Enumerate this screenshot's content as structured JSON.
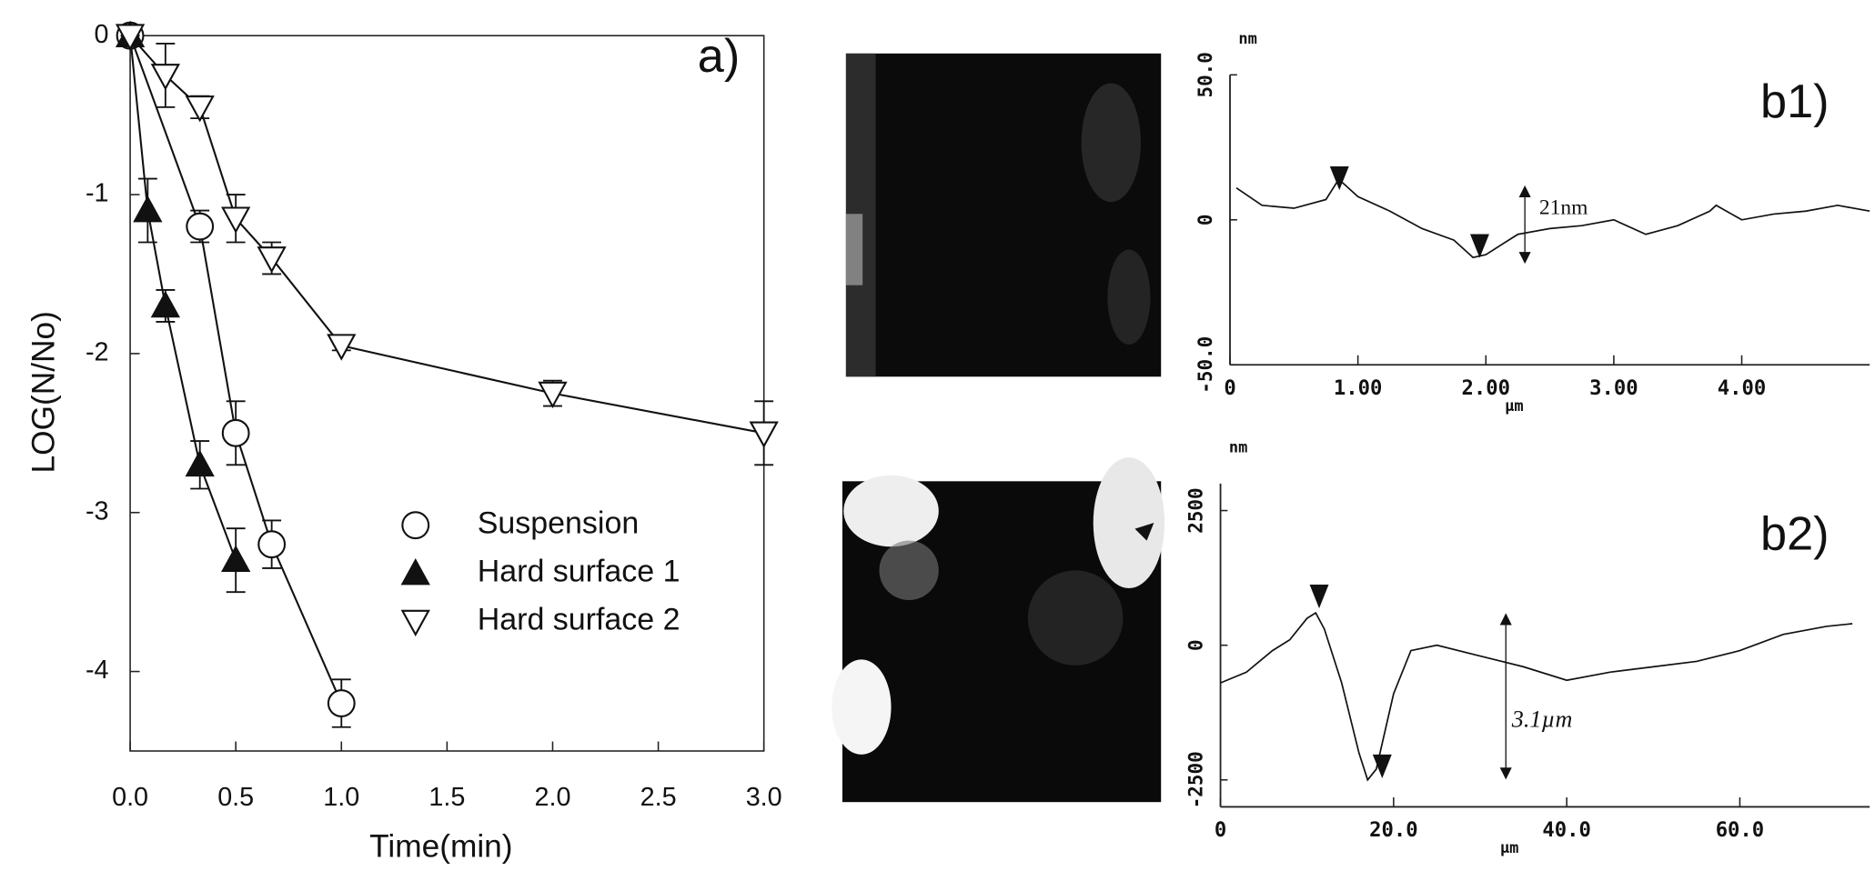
{
  "chart_data": [
    {
      "type": "line",
      "x_label": "Time(min)",
      "y_label": "LOG(N/No)",
      "annotation": "a)",
      "xlim": [
        0,
        3
      ],
      "ylim": [
        -4.5,
        0
      ],
      "xticks": [
        {
          "value": 0,
          "label": "0.0"
        },
        {
          "value": 0.5,
          "label": "0.5"
        },
        {
          "value": 1,
          "label": "1.0"
        },
        {
          "value": 1.5,
          "label": "1.5"
        },
        {
          "value": 2,
          "label": "2.0"
        },
        {
          "value": 2.5,
          "label": "2.5"
        },
        {
          "value": 3,
          "label": "3.0"
        }
      ],
      "yticks": [
        0,
        -1,
        -2,
        -3,
        -4
      ],
      "series": [
        {
          "name": "Suspension",
          "marker": "circle-open",
          "color": "#111111",
          "x": [
            0,
            0.33,
            0.5,
            0.67,
            1.0
          ],
          "values": [
            0,
            -1.2,
            -2.5,
            -3.2,
            -4.2
          ],
          "errors": [
            0,
            0.1,
            0.2,
            0.15,
            0.15
          ]
        },
        {
          "name": "Hard surface 1",
          "marker": "triangle-filled",
          "color": "#111111",
          "x": [
            0,
            0.083,
            0.167,
            0.33,
            0.5
          ],
          "values": [
            0,
            -1.1,
            -1.7,
            -2.7,
            -3.3
          ],
          "errors": [
            0,
            0.2,
            0.1,
            0.15,
            0.2
          ]
        },
        {
          "name": "Hard surface 2",
          "marker": "triangle-down-open",
          "color": "#111111",
          "x": [
            0,
            0.167,
            0.33,
            0.5,
            0.67,
            1.0,
            2.0,
            3.0
          ],
          "values": [
            0,
            -0.25,
            -0.45,
            -1.15,
            -1.4,
            -1.95,
            -2.25,
            -2.5
          ],
          "errors": [
            0,
            0.2,
            0.07,
            0.15,
            0.1,
            0.03,
            0.08,
            0.2
          ]
        }
      ]
    },
    {
      "type": "line",
      "x_label": "µm",
      "y_label": "nm",
      "annotation": "b1)",
      "value_annotation": "21nm",
      "xlim": [
        0,
        5
      ],
      "ylim": [
        -50,
        50
      ],
      "xticks": [
        0,
        {
          "value": 1,
          "label": "1.00"
        },
        {
          "value": 2,
          "label": "2.00"
        },
        {
          "value": 3,
          "label": "3.00"
        },
        {
          "value": 4,
          "label": "4.00"
        }
      ],
      "yticks": [
        {
          "value": 50,
          "label": "50.0"
        },
        0,
        {
          "value": -50,
          "label": "-50.0"
        }
      ],
      "series": [
        {
          "color": "#111111",
          "x": [
            0.05,
            0.25,
            0.5,
            0.75,
            0.85,
            1.0,
            1.25,
            1.5,
            1.75,
            1.9,
            2.0,
            2.25,
            2.5,
            2.75,
            3.0,
            3.25,
            3.5,
            3.75,
            3.8,
            4.0,
            4.25,
            4.5,
            4.75,
            5.0
          ],
          "values": [
            11,
            5,
            4,
            7,
            14,
            8,
            3,
            -3,
            -7,
            -13,
            -12,
            -5,
            -3,
            -2,
            0,
            -5,
            -2,
            3,
            5,
            0,
            2,
            3,
            5,
            3
          ]
        }
      ]
    },
    {
      "type": "line",
      "x_label": "µm",
      "y_label": "nm",
      "annotation": "b2)",
      "value_annotation": "3.1µm",
      "xlim": [
        0,
        75
      ],
      "ylim": [
        -3000,
        3000
      ],
      "xticks": [
        0,
        {
          "value": 20,
          "label": "20.0"
        },
        {
          "value": 40,
          "label": "40.0"
        },
        {
          "value": 60,
          "label": "60.0"
        }
      ],
      "yticks": [
        2500,
        0,
        -2500
      ],
      "series": [
        {
          "color": "#111111",
          "x": [
            0,
            3,
            6,
            8,
            10,
            11,
            12,
            14,
            16,
            17,
            18,
            20,
            22,
            25,
            30,
            35,
            40,
            45,
            50,
            55,
            60,
            65,
            70,
            73
          ],
          "values": [
            -700,
            -500,
            -100,
            100,
            500,
            600,
            300,
            -700,
            -2000,
            -2500,
            -2300,
            -900,
            -100,
            0,
            -200,
            -400,
            -650,
            -500,
            -400,
            -300,
            -100,
            200,
            350,
            400
          ]
        }
      ]
    }
  ]
}
